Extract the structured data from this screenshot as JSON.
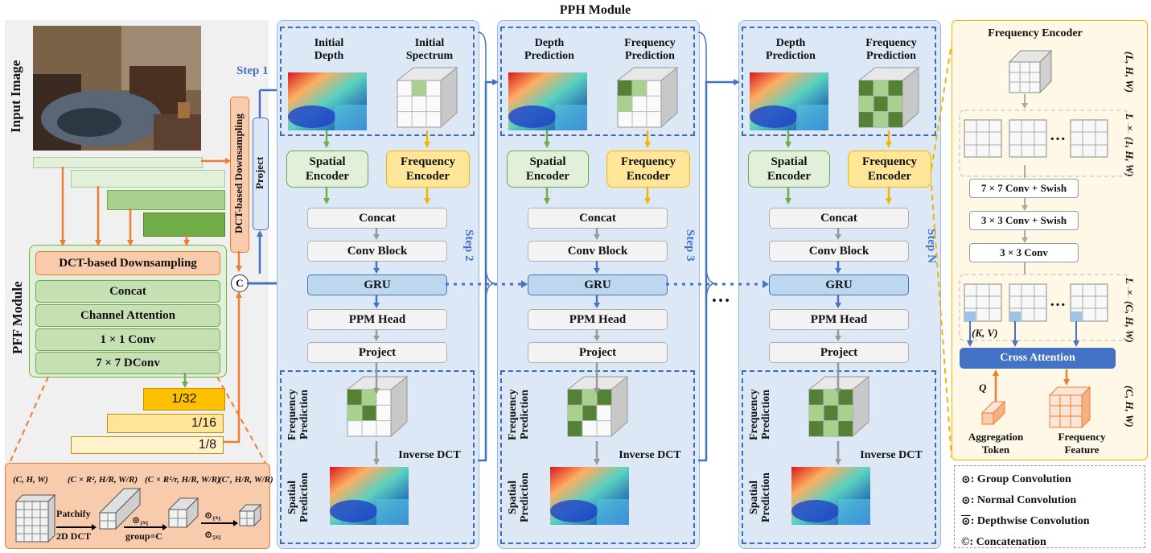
{
  "title": "PPH Module",
  "input": {
    "label": "Input Image",
    "pff_label": "PFF Module",
    "dct_vertical": "DCT-based Downsampling",
    "project_vertical": "Project",
    "concat_symbol": "C"
  },
  "pff": {
    "header": "DCT-based Downsampling",
    "rows": [
      "Concat",
      "Channel Attention",
      "1 × 1 Conv",
      "7 × 7 DConv"
    ],
    "outputs": [
      "1/32",
      "1/16",
      "1/8"
    ]
  },
  "dct_detail": {
    "shapes": [
      "(C, H, W)",
      "(C × R², H/R, W/R)",
      "(C × R²/r, H/R, W/R)",
      "(C′, H/R, W/R)"
    ],
    "patchify": "Patchify",
    "dct2d": "2D DCT",
    "op1": "⊙₁ₓ₁",
    "group": "group=C",
    "op2": "⊙₁ₓ₁",
    "op3": "⊙₅ₓ₅"
  },
  "steps": [
    {
      "step_label": "Step 1",
      "top_left": "Initial\nDepth",
      "top_right": "Initial\nSpectrum",
      "side_label": "Step 2"
    },
    {
      "step_label": "",
      "top_left": "Depth\nPrediction",
      "top_right": "Frequency\nPrediction",
      "side_label": "Step 3"
    },
    {
      "step_label": "",
      "top_left": "Depth\nPrediction",
      "top_right": "Frequency\nPrediction",
      "side_label": "Step N"
    }
  ],
  "blocks": {
    "spatial_encoder": "Spatial\nEncoder",
    "frequency_encoder": "Frequency\nEncoder",
    "concat": "Concat",
    "conv_block": "Conv Block",
    "gru": "GRU",
    "ppm_head": "PPM Head",
    "project": "Project",
    "freq_pred": "Frequency\nPrediction",
    "inverse_dct": "Inverse DCT",
    "spatial_pred": "Spatial\nPrediction"
  },
  "ellipsis": "…",
  "freq_encoder_panel": {
    "title": "Frequency Encoder",
    "shape1": "(L, H, W)",
    "shape2": "L × (1, H, W)",
    "ops": [
      "7 × 7 Conv + Swish",
      "3 × 3 Conv + Swish",
      "3 × 3 Conv"
    ],
    "shape3": "L × (C, H, W)",
    "kv": "(K, V)",
    "q": "Q",
    "cross_attention": "Cross Attention",
    "shape4": "(C, H, W)",
    "aggregation_token": "Aggregation\nToken",
    "frequency_feature": "Frequency\nFeature"
  },
  "legend": [
    {
      "symbol": "⊙",
      "text": ": Group Convolution"
    },
    {
      "symbol": "⊙",
      "text": ": Normal Convolution"
    },
    {
      "symbol": "⊙",
      "text": ": Depthwise Convolution"
    },
    {
      "symbol": "©",
      "text": ": Concatenation"
    }
  ],
  "colors": {
    "orange": "#ed7d31",
    "blue": "#4472c4",
    "green": "#70ad47",
    "yellow": "#f4b400",
    "gray": "#a6a6a6"
  }
}
